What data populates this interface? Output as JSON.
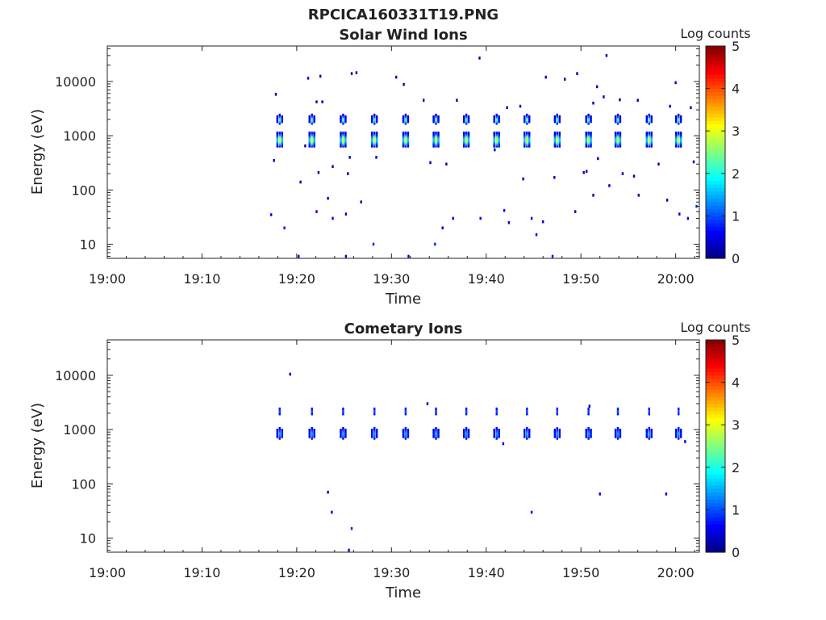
{
  "figure_title": "RPCICA160331T19.PNG",
  "colorbar": {
    "label": "Log counts",
    "min": 0,
    "max": 5,
    "ticks": [
      "0",
      "1",
      "2",
      "3",
      "4",
      "5"
    ],
    "colormap": "jet"
  },
  "chart_data": [
    {
      "type": "heatmap",
      "title": "Solar Wind Ions",
      "xlabel": "Time",
      "ylabel": "Energy (eV)",
      "xlim_minutes_after_1900": [
        0,
        62.5
      ],
      "yscale": "log",
      "ylim": [
        5.5,
        45000
      ],
      "x_ticks": [
        "19:00",
        "19:10",
        "19:20",
        "19:30",
        "19:40",
        "19:50",
        "20:00"
      ],
      "y_ticks": [
        "10",
        "100",
        "1000",
        "10000"
      ],
      "burst_times_minutes_after_1900": [
        18.2,
        21.6,
        24.9,
        28.2,
        31.5,
        34.7,
        37.9,
        41.1,
        44.3,
        47.5,
        50.8,
        53.9,
        57.2,
        60.3
      ],
      "burst_peak_energy_eV": 850,
      "burst_secondary_energy_eV": 2000,
      "burst_peak_log_counts": 3.1,
      "sparse_points": [
        {
          "t": 17.8,
          "e": 5800,
          "v": 0.3
        },
        {
          "t": 21.2,
          "e": 11500,
          "v": 0.3
        },
        {
          "t": 22.5,
          "e": 12500,
          "v": 0.3
        },
        {
          "t": 25.8,
          "e": 14000,
          "v": 0.3
        },
        {
          "t": 26.3,
          "e": 14500,
          "v": 0.3
        },
        {
          "t": 30.5,
          "e": 12000,
          "v": 0.3
        },
        {
          "t": 31.3,
          "e": 8800,
          "v": 0.3
        },
        {
          "t": 39.3,
          "e": 27000,
          "v": 0.3
        },
        {
          "t": 46.3,
          "e": 12000,
          "v": 0.3
        },
        {
          "t": 48.3,
          "e": 11000,
          "v": 0.3
        },
        {
          "t": 49.6,
          "e": 14000,
          "v": 0.3
        },
        {
          "t": 51.7,
          "e": 8000,
          "v": 0.3
        },
        {
          "t": 52.7,
          "e": 30000,
          "v": 0.3
        },
        {
          "t": 60.0,
          "e": 9500,
          "v": 0.3
        },
        {
          "t": 22.1,
          "e": 4200,
          "v": 0.3
        },
        {
          "t": 22.7,
          "e": 4200,
          "v": 0.3
        },
        {
          "t": 33.4,
          "e": 4500,
          "v": 0.3
        },
        {
          "t": 36.9,
          "e": 4500,
          "v": 0.3
        },
        {
          "t": 42.2,
          "e": 3300,
          "v": 0.3
        },
        {
          "t": 43.6,
          "e": 3500,
          "v": 0.3
        },
        {
          "t": 51.3,
          "e": 4000,
          "v": 0.3
        },
        {
          "t": 52.4,
          "e": 5200,
          "v": 0.3
        },
        {
          "t": 54.1,
          "e": 4600,
          "v": 0.3
        },
        {
          "t": 56.0,
          "e": 4500,
          "v": 0.3
        },
        {
          "t": 59.4,
          "e": 3500,
          "v": 0.3
        },
        {
          "t": 61.6,
          "e": 3300,
          "v": 0.3
        },
        {
          "t": 17.6,
          "e": 350,
          "v": 0.3
        },
        {
          "t": 20.9,
          "e": 650,
          "v": 0.3
        },
        {
          "t": 22.3,
          "e": 210,
          "v": 0.3
        },
        {
          "t": 23.8,
          "e": 270,
          "v": 0.3
        },
        {
          "t": 25.4,
          "e": 200,
          "v": 0.3
        },
        {
          "t": 28.4,
          "e": 400,
          "v": 0.3
        },
        {
          "t": 34.1,
          "e": 320,
          "v": 0.3
        },
        {
          "t": 35.8,
          "e": 300,
          "v": 0.3
        },
        {
          "t": 40.9,
          "e": 550,
          "v": 0.3
        },
        {
          "t": 43.9,
          "e": 160,
          "v": 0.3
        },
        {
          "t": 47.2,
          "e": 170,
          "v": 0.3
        },
        {
          "t": 50.3,
          "e": 210,
          "v": 0.3
        },
        {
          "t": 51.8,
          "e": 380,
          "v": 0.3
        },
        {
          "t": 54.4,
          "e": 200,
          "v": 0.3
        },
        {
          "t": 55.6,
          "e": 180,
          "v": 0.3
        },
        {
          "t": 58.2,
          "e": 300,
          "v": 0.3
        },
        {
          "t": 61.9,
          "e": 330,
          "v": 0.3
        },
        {
          "t": 20.4,
          "e": 140,
          "v": 0.3
        },
        {
          "t": 23.3,
          "e": 70,
          "v": 0.3
        },
        {
          "t": 25.6,
          "e": 400,
          "v": 0.3
        },
        {
          "t": 26.8,
          "e": 60,
          "v": 0.3
        },
        {
          "t": 50.6,
          "e": 220,
          "v": 0.3
        },
        {
          "t": 51.3,
          "e": 80,
          "v": 0.3
        },
        {
          "t": 53.0,
          "e": 120,
          "v": 0.3
        },
        {
          "t": 56.1,
          "e": 80,
          "v": 0.3
        },
        {
          "t": 59.1,
          "e": 65,
          "v": 0.3
        },
        {
          "t": 17.3,
          "e": 35,
          "v": 0.6
        },
        {
          "t": 18.7,
          "e": 20,
          "v": 0.7
        },
        {
          "t": 22.1,
          "e": 40,
          "v": 0.5
        },
        {
          "t": 23.8,
          "e": 30,
          "v": 0.5
        },
        {
          "t": 25.2,
          "e": 36,
          "v": 0.5
        },
        {
          "t": 28.1,
          "e": 10,
          "v": 0.8
        },
        {
          "t": 34.6,
          "e": 10,
          "v": 0.8
        },
        {
          "t": 36.5,
          "e": 30,
          "v": 0.5
        },
        {
          "t": 35.4,
          "e": 20,
          "v": 0.4
        },
        {
          "t": 39.4,
          "e": 30,
          "v": 0.5
        },
        {
          "t": 41.9,
          "e": 42,
          "v": 0.6
        },
        {
          "t": 42.4,
          "e": 25,
          "v": 0.5
        },
        {
          "t": 44.8,
          "e": 30,
          "v": 0.5
        },
        {
          "t": 45.3,
          "e": 15,
          "v": 0.6
        },
        {
          "t": 46.0,
          "e": 26,
          "v": 0.5
        },
        {
          "t": 49.4,
          "e": 40,
          "v": 0.5
        },
        {
          "t": 60.4,
          "e": 36,
          "v": 0.5
        },
        {
          "t": 61.3,
          "e": 30,
          "v": 0.5
        },
        {
          "t": 62.2,
          "e": 50,
          "v": 0.9
        },
        {
          "t": 20.2,
          "e": 6,
          "v": 0.4
        },
        {
          "t": 25.2,
          "e": 6,
          "v": 0.4
        },
        {
          "t": 31.8,
          "e": 6,
          "v": 0.4
        },
        {
          "t": 47.0,
          "e": 6,
          "v": 0.4
        }
      ]
    },
    {
      "type": "heatmap",
      "title": "Cometary Ions",
      "xlabel": "Time",
      "ylabel": "Energy (eV)",
      "xlim_minutes_after_1900": [
        0,
        62.5
      ],
      "yscale": "log",
      "ylim": [
        5.5,
        45000
      ],
      "x_ticks": [
        "19:00",
        "19:10",
        "19:20",
        "19:30",
        "19:40",
        "19:50",
        "20:00"
      ],
      "y_ticks": [
        "10",
        "100",
        "1000",
        "10000"
      ],
      "burst_times_minutes_after_1900": [
        18.2,
        21.6,
        24.9,
        28.2,
        31.5,
        34.7,
        37.9,
        41.1,
        44.3,
        47.5,
        50.8,
        53.9,
        57.2,
        60.3
      ],
      "burst_peak_energy_eV": 850,
      "burst_secondary_energy_eV": 2200,
      "burst_peak_log_counts": 1.4,
      "sparse_points": [
        {
          "t": 19.3,
          "e": 10500,
          "v": 0.3
        },
        {
          "t": 33.8,
          "e": 3000,
          "v": 0.3
        },
        {
          "t": 50.9,
          "e": 2700,
          "v": 0.3
        },
        {
          "t": 41.8,
          "e": 550,
          "v": 0.3
        },
        {
          "t": 61.0,
          "e": 600,
          "v": 0.4
        },
        {
          "t": 23.3,
          "e": 70,
          "v": 0.3
        },
        {
          "t": 23.7,
          "e": 30,
          "v": 0.4
        },
        {
          "t": 25.8,
          "e": 15,
          "v": 0.8
        },
        {
          "t": 44.8,
          "e": 30,
          "v": 0.5
        },
        {
          "t": 52.0,
          "e": 65,
          "v": 0.5
        },
        {
          "t": 59.0,
          "e": 65,
          "v": 0.4
        },
        {
          "t": 25.5,
          "e": 6,
          "v": 0.4
        }
      ]
    }
  ]
}
